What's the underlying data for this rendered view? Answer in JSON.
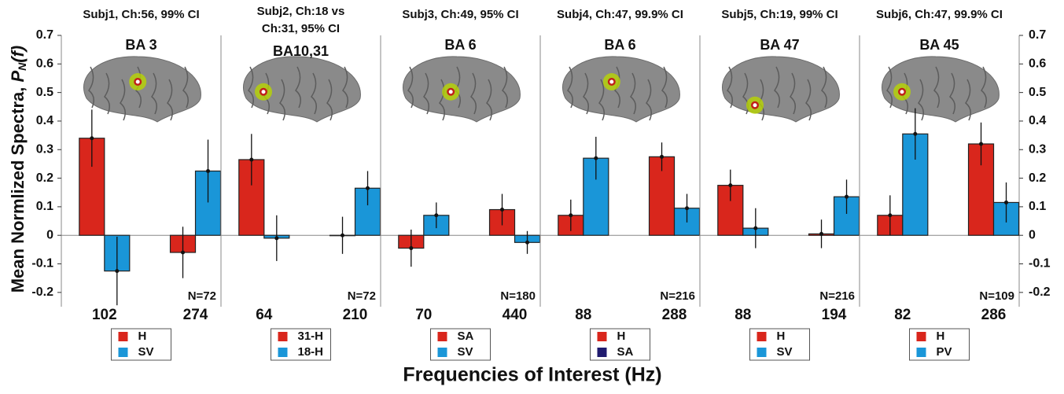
{
  "figure": {
    "ylabel": "Mean Normlized Spectra, ",
    "ylabel_symbol": "P",
    "ylabel_subscript": "N",
    "ylabel_suffix": "(f)",
    "xlabel": "Frequencies of Interest (Hz)"
  },
  "chart_data": [
    {
      "type": "bar",
      "title": [
        "Subj1, Ch:56, 99% CI"
      ],
      "area": "BA 3",
      "annotation": "N=72",
      "categories": [
        "102",
        "274"
      ],
      "series": [
        {
          "name": "H",
          "color": "#d9261c",
          "values": [
            0.34,
            -0.06
          ],
          "errors": [
            0.1,
            0.09
          ]
        },
        {
          "name": "SV",
          "color": "#1a96d8",
          "values": [
            -0.125,
            0.225
          ],
          "errors": [
            0.12,
            0.11
          ]
        }
      ],
      "ylim": [
        -0.25,
        0.7
      ],
      "yticks": [
        -0.2,
        -0.1,
        0,
        0.1,
        0.2,
        0.3,
        0.4,
        0.5,
        0.6,
        0.7
      ]
    },
    {
      "type": "bar",
      "title": [
        "Subj2, Ch:18 vs",
        "Ch:31, 95% CI"
      ],
      "area": "BA10,31",
      "annotation": "N=72",
      "categories": [
        "64",
        "210"
      ],
      "series": [
        {
          "name": "31-H",
          "color": "#d9261c",
          "values": [
            0.265,
            0.0
          ],
          "errors": [
            0.09,
            0.065
          ]
        },
        {
          "name": "18-H",
          "color": "#1a96d8",
          "values": [
            -0.01,
            0.165
          ],
          "errors": [
            0.08,
            0.06
          ]
        }
      ],
      "ylim": [
        -0.25,
        0.7
      ]
    },
    {
      "type": "bar",
      "title": [
        "Subj3, Ch:49, 95% CI"
      ],
      "area": "BA 6",
      "annotation": "N=180",
      "categories": [
        "70",
        "440"
      ],
      "series": [
        {
          "name": "SA",
          "color": "#d9261c",
          "values": [
            -0.045,
            0.09
          ],
          "errors": [
            0.065,
            0.055
          ]
        },
        {
          "name": "SV",
          "color": "#1a96d8",
          "values": [
            0.07,
            -0.025
          ],
          "errors": [
            0.045,
            0.04
          ]
        }
      ],
      "ylim": [
        -0.25,
        0.7
      ]
    },
    {
      "type": "bar",
      "title": [
        "Subj4, Ch:47, 99.9% CI"
      ],
      "area": "BA 6",
      "annotation": "N=216",
      "categories": [
        "88",
        "288"
      ],
      "series": [
        {
          "name": "H",
          "color": "#d9261c",
          "values": [
            0.07,
            0.275
          ],
          "errors": [
            0.055,
            0.05
          ]
        },
        {
          "name": "SA",
          "color": "#1a96d8",
          "legend_color": "#1f1a6e",
          "values": [
            0.27,
            0.095
          ],
          "errors": [
            0.075,
            0.05
          ]
        }
      ],
      "ylim": [
        -0.25,
        0.7
      ]
    },
    {
      "type": "bar",
      "title": [
        "Subj5, Ch:19, 99% CI"
      ],
      "area": "BA 47",
      "annotation": "N=216",
      "categories": [
        "88",
        "194"
      ],
      "series": [
        {
          "name": "H",
          "color": "#d9261c",
          "values": [
            0.175,
            0.005
          ],
          "errors": [
            0.055,
            0.05
          ]
        },
        {
          "name": "SV",
          "color": "#1a96d8",
          "values": [
            0.025,
            0.135
          ],
          "errors": [
            0.07,
            0.06
          ]
        }
      ],
      "ylim": [
        -0.25,
        0.7
      ]
    },
    {
      "type": "bar",
      "title": [
        "Subj6, Ch:47, 99.9% CI"
      ],
      "area": "BA 45",
      "annotation": "N=109",
      "categories": [
        "82",
        "286"
      ],
      "series": [
        {
          "name": "H",
          "color": "#d9261c",
          "values": [
            0.07,
            0.32
          ],
          "errors": [
            0.07,
            0.075
          ]
        },
        {
          "name": "PV",
          "color": "#1a96d8",
          "values": [
            0.355,
            0.115
          ],
          "errors": [
            0.09,
            0.07
          ]
        }
      ],
      "ylim": [
        -0.25,
        0.7
      ],
      "yticks": [
        -0.2,
        -0.1,
        0,
        0.1,
        0.2,
        0.3,
        0.4,
        0.5,
        0.6,
        0.7
      ]
    }
  ]
}
